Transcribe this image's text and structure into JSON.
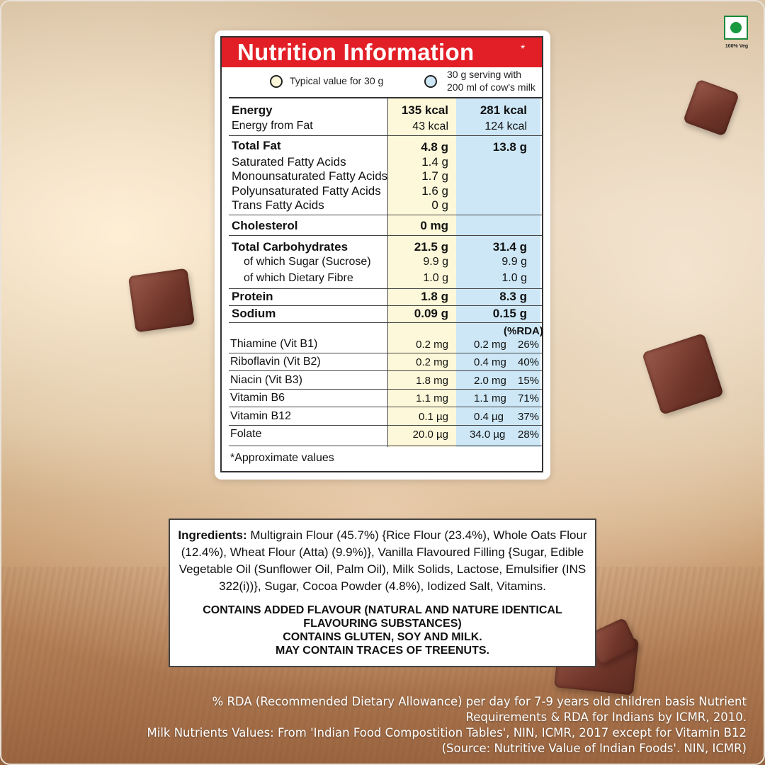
{
  "veg_mark": {
    "label": "100% Veg",
    "color": "#1a9a3e"
  },
  "nutrition": {
    "title": "Nutrition Information",
    "title_mark": "*",
    "title_bg": "#e21f26",
    "legend_typical": "Typical value for 30 g",
    "legend_serving_line1": "30 g serving with",
    "legend_serving_line2": "200 ml of cow's milk",
    "legend_typical_color": "#fdf8d9",
    "legend_serving_color": "#cde7f6",
    "energy": {
      "label": "Energy",
      "v30": "135 kcal",
      "vmilk": "281 kcal"
    },
    "energy_fat": {
      "label": "Energy from Fat",
      "v30": "43 kcal",
      "vmilk": "124 kcal"
    },
    "total_fat": {
      "label": "Total Fat",
      "v30": "4.8 g",
      "vmilk": "13.8 g"
    },
    "fats": [
      {
        "label": "Saturated Fatty Acids",
        "v30": "1.4 g"
      },
      {
        "label": "Monounsaturated Fatty Acids",
        "v30": "1.7 g"
      },
      {
        "label": "Polyunsaturated Fatty Acids",
        "v30": "1.6 g"
      },
      {
        "label": "Trans Fatty Acids",
        "v30": "0 g"
      }
    ],
    "cholesterol": {
      "label": "Cholesterol",
      "v30": "0 mg"
    },
    "carbs": {
      "label": "Total Carbohydrates",
      "v30": "21.5 g",
      "vmilk": "31.4 g"
    },
    "sugar": {
      "label": "of which Sugar (Sucrose)",
      "v30": "9.9 g",
      "vmilk": "9.9 g"
    },
    "fibre": {
      "label": "of which Dietary Fibre",
      "v30": "1.0 g",
      "vmilk": "1.0 g"
    },
    "protein": {
      "label": "Protein",
      "v30": "1.8 g",
      "vmilk": "8.3 g"
    },
    "sodium": {
      "label": "Sodium",
      "v30": "0.09 g",
      "vmilk": "0.15 g"
    },
    "rda_header": "(%RDA)",
    "vitamins": [
      {
        "label": "Thiamine (Vit B1)",
        "v30": "0.2 mg",
        "vmilk": "0.2 mg",
        "rda": "26%"
      },
      {
        "label": "Riboflavin (Vit B2)",
        "v30": "0.2 mg",
        "vmilk": "0.4 mg",
        "rda": "40%"
      },
      {
        "label": "Niacin (Vit B3)",
        "v30": "1.8 mg",
        "vmilk": "2.0 mg",
        "rda": "15%"
      },
      {
        "label": "Vitamin B6",
        "v30": "1.1 mg",
        "vmilk": "1.1 mg",
        "rda": "71%"
      },
      {
        "label": "Vitamin B12",
        "v30": "0.1 µg",
        "vmilk": "0.4 µg",
        "rda": "37%"
      },
      {
        "label": "Folate",
        "v30": "20.0 µg",
        "vmilk": "34.0 µg",
        "rda": "28%"
      }
    ],
    "footnote": "*Approximate values"
  },
  "ingredients": {
    "label": "Ingredients:",
    "text": "Multigrain Flour (45.7%) {Rice Flour (23.4%), Whole Oats Flour (12.4%), Wheat Flour (Atta) (9.9%)}, Vanilla Flavoured Filling {Sugar, Edible Vegetable Oil (Sunflower Oil, Palm Oil), Milk Solids, Lactose, Emulsifier (INS 322(i))}, Sugar, Cocoa Powder (4.8%), Iodized Salt, Vitamins.",
    "warning_line1": "CONTAINS ADDED FLAVOUR (NATURAL AND NATURE IDENTICAL",
    "warning_line2": "FLAVOURING SUBSTANCES)",
    "warning_line3": "CONTAINS GLUTEN, SOY AND MILK.",
    "warning_line4": "MAY CONTAIN TRACES OF TREENUTS."
  },
  "footer": {
    "line1": "% RDA (Recommended Dietary Allowance) per day for 7-9 years old children basis Nutrient",
    "line2": "Requirements & RDA for Indians by ICMR, 2010.",
    "line3": "Milk Nutrients Values: From 'Indian Food Compostition Tables', NIN, ICMR, 2017 except for Vitamin B12",
    "line4": "(Source: Nutritive Value of Indian Foods'. NIN, ICMR)"
  }
}
